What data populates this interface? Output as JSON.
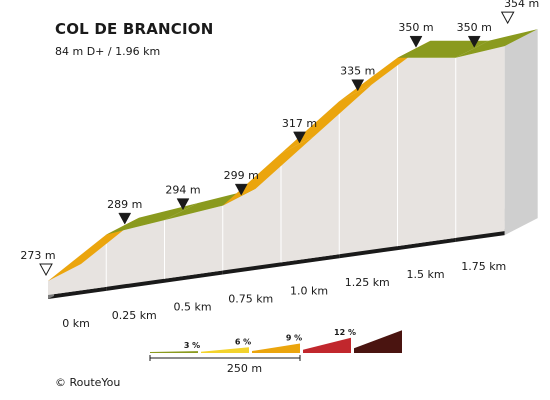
{
  "header": {
    "title": "COL DE BRANCION",
    "subtitle": "84 m D+ / 1.96 km"
  },
  "footer": {
    "copyright": "© RouteYou"
  },
  "chart_data": {
    "type": "area",
    "title": "COL DE BRANCION",
    "subtitle": "84 m D+ / 1.96 km",
    "x_unit": "km",
    "y_unit": "m",
    "profile": {
      "distance_km": [
        0,
        0.25,
        0.5,
        0.75,
        1.0,
        1.25,
        1.5,
        1.75,
        1.96
      ],
      "elevation_m": [
        273,
        289,
        294,
        299,
        317,
        335,
        350,
        350,
        354
      ],
      "gradient_class": [
        "9 %",
        "3 %",
        "3 %",
        "9 %",
        "9 %",
        "9 %",
        "3 %",
        "3 %"
      ]
    },
    "x_tick_labels": [
      "0 km",
      "0.25 km",
      "0.5 km",
      "0.75 km",
      "1.0 km",
      "1.25 km",
      "1.5 km",
      "1.75 km"
    ],
    "elevation_markers": [
      {
        "label": "273 m",
        "kind": "start"
      },
      {
        "label": "289 m",
        "kind": "point"
      },
      {
        "label": "294 m",
        "kind": "point"
      },
      {
        "label": "299 m",
        "kind": "point"
      },
      {
        "label": "317 m",
        "kind": "point"
      },
      {
        "label": "335 m",
        "kind": "point"
      },
      {
        "label": "350 m",
        "kind": "point"
      },
      {
        "label": "350 m",
        "kind": "point"
      },
      {
        "label": "354 m",
        "kind": "end"
      }
    ],
    "legend": {
      "classes": [
        {
          "label": "3 %",
          "color": "#8a9a1e"
        },
        {
          "label": "6 %",
          "color": "#f3d32c"
        },
        {
          "label": "9 %",
          "color": "#eba50d"
        },
        {
          "label": "12 %",
          "color": "#c1272d"
        },
        {
          "label": "",
          "color": "#4a1410"
        }
      ],
      "scale_label": "250 m"
    },
    "colors": {
      "side_wall": "#e7e3e0",
      "divider": "#ffffff",
      "base_top": "#7b7b7b",
      "base_front": "#1a1a1a"
    }
  }
}
